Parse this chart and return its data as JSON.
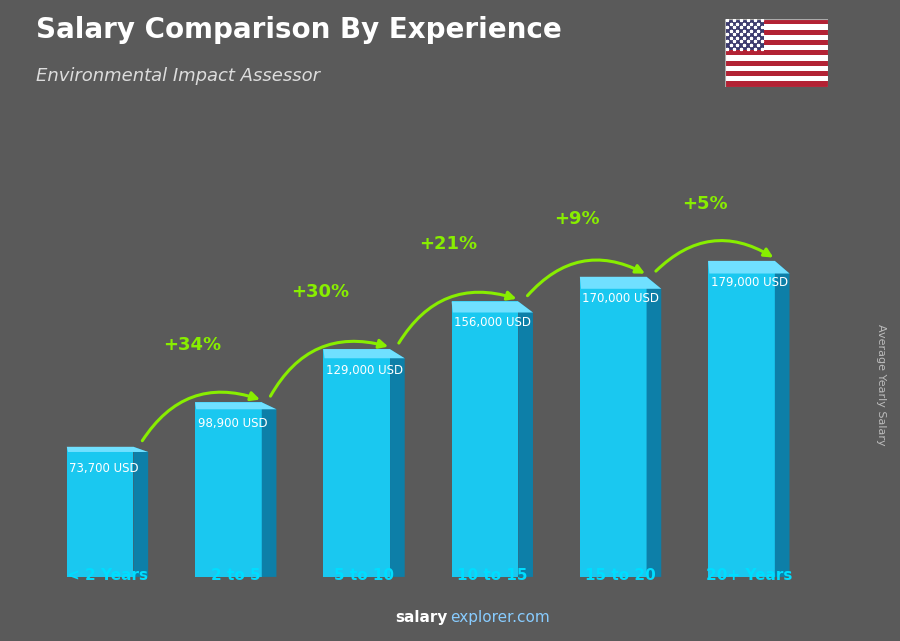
{
  "title": "Salary Comparison By Experience",
  "subtitle": "Environmental Impact Assessor",
  "ylabel": "Average Yearly Salary",
  "categories": [
    "< 2 Years",
    "2 to 5",
    "5 to 10",
    "10 to 15",
    "15 to 20",
    "20+ Years"
  ],
  "values": [
    73700,
    98900,
    129000,
    156000,
    170000,
    179000
  ],
  "value_labels": [
    "73,700 USD",
    "98,900 USD",
    "129,000 USD",
    "156,000 USD",
    "170,000 USD",
    "179,000 USD"
  ],
  "pct_changes": [
    "+34%",
    "+30%",
    "+21%",
    "+9%",
    "+5%"
  ],
  "bar_color_front": "#1ac8f0",
  "bar_color_side": "#0d7fa8",
  "bar_color_top": "#70e0ff",
  "background_color": "#5a5a5a",
  "title_color": "#ffffff",
  "subtitle_color": "#dddddd",
  "category_color": "#00ddff",
  "pct_color": "#88ee00",
  "value_label_color": "#ffffff",
  "ylabel_color": "#bbbbbb",
  "watermark_left_color": "#ffffff",
  "watermark_right_color": "#88ccff"
}
